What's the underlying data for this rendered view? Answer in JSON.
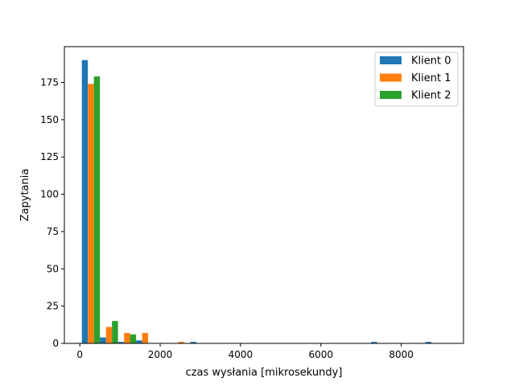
{
  "chart_data": {
    "type": "bar",
    "subtype": "histogram",
    "title": "",
    "xlabel": "czas wysłania [mikrosekundy]",
    "ylabel": "Zapytania",
    "xlim": [
      -385,
      9550
    ],
    "ylim": [
      0,
      199
    ],
    "xticks": [
      0,
      2000,
      4000,
      6000,
      8000
    ],
    "yticks": [
      0,
      25,
      50,
      75,
      100,
      125,
      150,
      175
    ],
    "bin_edges": [
      50,
      500,
      950,
      1400,
      1850,
      2300,
      2750,
      3200,
      3650,
      4100,
      4550,
      5000,
      5450,
      5900,
      6350,
      6800,
      7250,
      7700,
      8150,
      8600,
      9050
    ],
    "series": [
      {
        "name": "Klient 0",
        "color": "#1f77b4",
        "values": [
          190,
          4,
          1,
          2,
          0,
          0,
          1,
          0,
          0,
          0,
          0,
          0,
          0,
          0,
          0,
          0,
          1,
          0,
          0,
          1
        ]
      },
      {
        "name": "Klient 1",
        "color": "#ff7f0e",
        "values": [
          174,
          11,
          7,
          7,
          0,
          1,
          0,
          0,
          0,
          0,
          0,
          0,
          0,
          0,
          0,
          0,
          0,
          0,
          0,
          0
        ]
      },
      {
        "name": "Klient 2",
        "color": "#2ca02c",
        "values": [
          179,
          15,
          6,
          0,
          0,
          0,
          0,
          0,
          0,
          0,
          0,
          0,
          0,
          0,
          0,
          0,
          0,
          0,
          0,
          0
        ]
      }
    ],
    "legend": {
      "position": "top-right"
    },
    "grid": false
  }
}
